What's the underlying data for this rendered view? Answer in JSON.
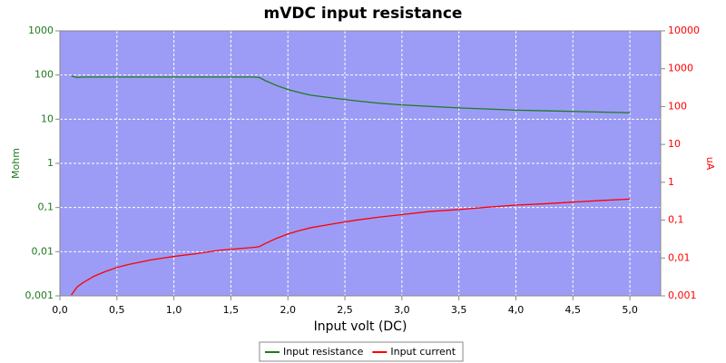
{
  "chart_data": {
    "type": "line",
    "title": "mVDC input resistance",
    "x_label": "Input volt (DC)",
    "y_label": "Mohm",
    "y2_label": "uA",
    "x": [
      0.1,
      0.15,
      0.2,
      0.3,
      0.4,
      0.5,
      0.6,
      0.8,
      1.0,
      1.2,
      1.4,
      1.6,
      1.7,
      1.75,
      1.8,
      1.9,
      2.0,
      2.1,
      2.2,
      2.4,
      2.6,
      2.8,
      3.0,
      3.25,
      3.5,
      3.75,
      4.0,
      4.25,
      4.5,
      4.75,
      5.0
    ],
    "series": [
      {
        "name": "Input resistance",
        "color": "#1e7b1e",
        "axis": "y",
        "values": [
          95,
          88,
          90,
          90,
          90,
          90,
          90,
          90,
          90,
          90,
          90,
          90,
          90,
          88,
          75,
          58,
          47,
          40,
          35,
          30,
          26,
          23,
          21,
          19.5,
          18,
          17,
          16,
          15.5,
          15,
          14.5,
          14
        ]
      },
      {
        "name": "Input current",
        "color": "#ff0000",
        "axis": "y2",
        "values": [
          0.00105,
          0.0017,
          0.0022,
          0.0033,
          0.0044,
          0.0056,
          0.0067,
          0.0089,
          0.011,
          0.013,
          0.016,
          0.018,
          0.019,
          0.02,
          0.024,
          0.033,
          0.043,
          0.053,
          0.063,
          0.08,
          0.1,
          0.12,
          0.14,
          0.17,
          0.19,
          0.22,
          0.25,
          0.27,
          0.3,
          0.33,
          0.36
        ]
      }
    ],
    "xlim": [
      0,
      5.27
    ],
    "xticks": [
      {
        "value": 0,
        "label": "0,0"
      },
      {
        "value": 0.5,
        "label": "0,5"
      },
      {
        "value": 1,
        "label": "1,0"
      },
      {
        "value": 1.5,
        "label": "1,5"
      },
      {
        "value": 2,
        "label": "2,0"
      },
      {
        "value": 2.5,
        "label": "2,5"
      },
      {
        "value": 3,
        "label": "3,0"
      },
      {
        "value": 3.5,
        "label": "3,5"
      },
      {
        "value": 4,
        "label": "4,0"
      },
      {
        "value": 4.5,
        "label": "4,5"
      },
      {
        "value": 5,
        "label": "5,0"
      }
    ],
    "ylim": [
      0.001,
      1000
    ],
    "ylog": true,
    "yticks": [
      {
        "value": 0.001,
        "label": "0,001"
      },
      {
        "value": 0.01,
        "label": "0,01"
      },
      {
        "value": 0.1,
        "label": "0,1"
      },
      1,
      10,
      100,
      1000
    ],
    "y2lim": [
      0.001,
      10000
    ],
    "y2log": true,
    "y2ticks": [
      {
        "value": 0.001,
        "label": "0,001"
      },
      {
        "value": 0.01,
        "label": "0,01"
      },
      {
        "value": 0.1,
        "label": "0,1"
      },
      1,
      10,
      100,
      1000,
      10000
    ],
    "grid": true,
    "legend": "bottom"
  }
}
